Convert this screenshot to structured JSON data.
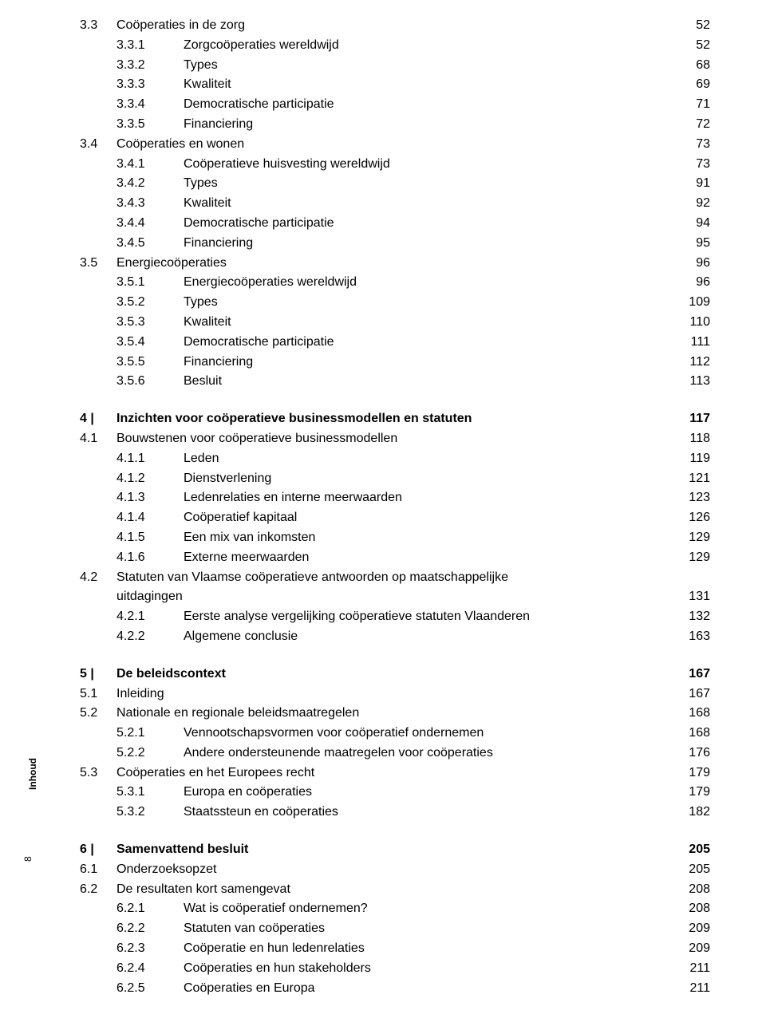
{
  "side_label": "Inhoud",
  "side_pagenum": "8",
  "entries": [
    {
      "level": 0,
      "num": "3.3",
      "label": "Coöperaties in de zorg",
      "page": "52"
    },
    {
      "level": 1,
      "num": "3.3.1",
      "label": "Zorgcoöperaties wereldwijd",
      "page": "52"
    },
    {
      "level": 1,
      "num": "3.3.2",
      "label": "Types",
      "page": "68"
    },
    {
      "level": 1,
      "num": "3.3.3",
      "label": "Kwaliteit",
      "page": "69"
    },
    {
      "level": 1,
      "num": "3.3.4",
      "label": "Democratische participatie",
      "page": "71"
    },
    {
      "level": 1,
      "num": "3.3.5",
      "label": "Financiering",
      "page": "72"
    },
    {
      "level": 0,
      "num": "3.4",
      "label": "Coöperaties en wonen",
      "page": "73"
    },
    {
      "level": 1,
      "num": "3.4.1",
      "label": "Coöperatieve huisvesting wereldwijd",
      "page": "73"
    },
    {
      "level": 1,
      "num": "3.4.2",
      "label": "Types",
      "page": "91"
    },
    {
      "level": 1,
      "num": "3.4.3",
      "label": "Kwaliteit",
      "page": "92"
    },
    {
      "level": 1,
      "num": "3.4.4",
      "label": "Democratische participatie",
      "page": "94"
    },
    {
      "level": 1,
      "num": "3.4.5",
      "label": "Financiering",
      "page": "95"
    },
    {
      "level": 0,
      "num": "3.5",
      "label": "Energiecoöperaties",
      "page": "96"
    },
    {
      "level": 1,
      "num": "3.5.1",
      "label": "Energiecoöperaties wereldwijd",
      "page": "96"
    },
    {
      "level": 1,
      "num": "3.5.2",
      "label": "Types",
      "page": "109"
    },
    {
      "level": 1,
      "num": "3.5.3",
      "label": "Kwaliteit",
      "page": "110"
    },
    {
      "level": 1,
      "num": "3.5.4",
      "label": "Democratische participatie",
      "page": "111"
    },
    {
      "level": 1,
      "num": "3.5.5",
      "label": "Financiering",
      "page": "112"
    },
    {
      "level": 1,
      "num": "3.5.6",
      "label": "Besluit",
      "page": "113"
    },
    {
      "gap": true
    },
    {
      "level": 0,
      "bold": true,
      "num": "4 |",
      "label": "Inzichten voor coöperatieve businessmodellen en statuten",
      "page": "117"
    },
    {
      "level": 0,
      "num": "4.1",
      "label": "Bouwstenen voor coöperatieve businessmodellen",
      "page": "118"
    },
    {
      "level": 1,
      "num": "4.1.1",
      "label": "Leden",
      "page": "119"
    },
    {
      "level": 1,
      "num": "4.1.2",
      "label": "Dienstverlening",
      "page": "121"
    },
    {
      "level": 1,
      "num": "4.1.3",
      "label": "Ledenrelaties en interne meerwaarden",
      "page": "123"
    },
    {
      "level": 1,
      "num": "4.1.4",
      "label": "Coöperatief kapitaal",
      "page": "126"
    },
    {
      "level": 1,
      "num": "4.1.5",
      "label": "Een mix van inkomsten",
      "page": "129"
    },
    {
      "level": 1,
      "num": "4.1.6",
      "label": "Externe meerwaarden",
      "page": "129"
    },
    {
      "level": 0,
      "num": "4.2",
      "label": "Statuten van Vlaamse coöperatieve antwoorden op maatschappelijke",
      "page": ""
    },
    {
      "level": -1,
      "num": "",
      "label": "uitdagingen",
      "page": "131"
    },
    {
      "level": 1,
      "num": "4.2.1",
      "label": "Eerste analyse vergelijking coöperatieve statuten Vlaanderen",
      "page": "132"
    },
    {
      "level": 1,
      "num": "4.2.2",
      "label": "Algemene conclusie",
      "page": "163"
    },
    {
      "gap": true
    },
    {
      "level": 0,
      "bold": true,
      "num": "5 |",
      "label": "De beleidscontext",
      "page": "167"
    },
    {
      "level": 0,
      "num": "5.1",
      "label": "Inleiding",
      "page": "167"
    },
    {
      "level": 0,
      "num": "5.2",
      "label": "Nationale en regionale beleidsmaatregelen",
      "page": "168"
    },
    {
      "level": 1,
      "num": "5.2.1",
      "label": "Vennootschapsvormen voor coöperatief ondernemen",
      "page": "168"
    },
    {
      "level": 1,
      "num": "5.2.2",
      "label": "Andere ondersteunende maatregelen voor coöperaties",
      "page": "176"
    },
    {
      "level": 0,
      "num": "5.3",
      "label": "Coöperaties en het Europees recht",
      "page": "179"
    },
    {
      "level": 1,
      "num": "5.3.1",
      "label": "Europa en coöperaties",
      "page": "179"
    },
    {
      "level": 1,
      "num": "5.3.2",
      "label": "Staatssteun en coöperaties",
      "page": "182"
    },
    {
      "gap": true
    },
    {
      "level": 0,
      "bold": true,
      "num": "6 |",
      "label": "Samenvattend besluit",
      "page": "205"
    },
    {
      "level": 0,
      "num": "6.1",
      "label": "Onderzoeksopzet",
      "page": "205"
    },
    {
      "level": 0,
      "num": "6.2",
      "label": "De resultaten kort samengevat",
      "page": "208"
    },
    {
      "level": 1,
      "num": "6.2.1",
      "label": "Wat is coöperatief ondernemen?",
      "page": "208"
    },
    {
      "level": 1,
      "num": "6.2.2",
      "label": "Statuten van coöperaties",
      "page": "209"
    },
    {
      "level": 1,
      "num": "6.2.3",
      "label": "Coöperatie en hun ledenrelaties",
      "page": "209"
    },
    {
      "level": 1,
      "num": "6.2.4",
      "label": "Coöperaties en hun stakeholders",
      "page": "211"
    },
    {
      "level": 1,
      "num": "6.2.5",
      "label": "Coöperaties en Europa",
      "page": "211"
    }
  ]
}
